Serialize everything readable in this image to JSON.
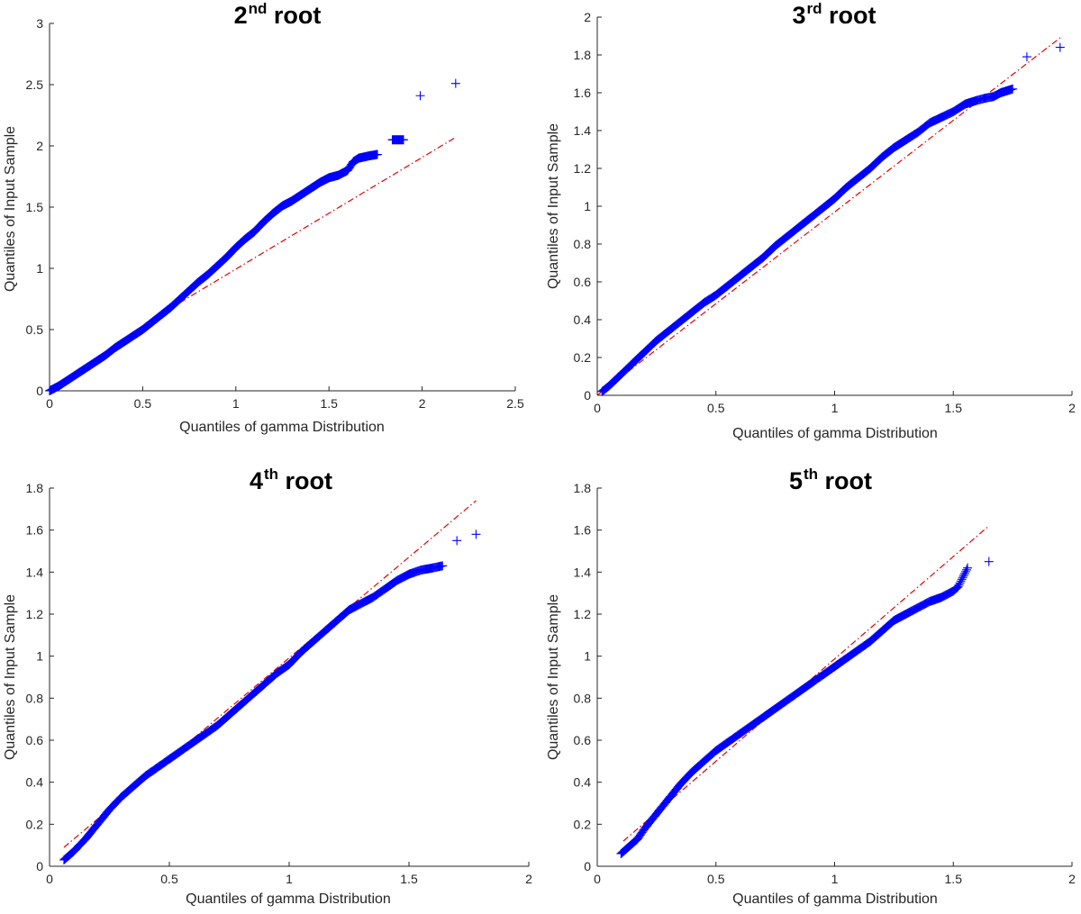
{
  "chart_data": [
    {
      "type": "scatter",
      "title_main": "2",
      "title_sup": "nd",
      "title_rest": " root",
      "xlabel": "Quantiles of gamma Distribution",
      "ylabel": "Quantiles of Input Sample",
      "xlim": [
        0,
        2.5
      ],
      "ylim": [
        0,
        3
      ],
      "xticks": [
        "0",
        "0.5",
        "1",
        "1.5",
        "2",
        "2.5"
      ],
      "yticks": [
        "0",
        "0.5",
        "1",
        "1.5",
        "2",
        "2.5",
        "3"
      ],
      "series": [
        {
          "marker": "+",
          "color": "#0000ff",
          "x": [
            0.0,
            0.05,
            0.1,
            0.15,
            0.2,
            0.25,
            0.3,
            0.35,
            0.4,
            0.45,
            0.5,
            0.55,
            0.6,
            0.65,
            0.7,
            0.75,
            0.8,
            0.85,
            0.9,
            0.95,
            1.0,
            1.05,
            1.1,
            1.15,
            1.2,
            1.25,
            1.3,
            1.35,
            1.4,
            1.45,
            1.5,
            1.55,
            1.6,
            1.63,
            1.66,
            1.69,
            1.72,
            1.76,
            1.84,
            1.9,
            1.99,
            2.18
          ],
          "y": [
            0.0,
            0.04,
            0.09,
            0.14,
            0.19,
            0.24,
            0.29,
            0.35,
            0.4,
            0.45,
            0.5,
            0.56,
            0.62,
            0.68,
            0.75,
            0.82,
            0.89,
            0.95,
            1.02,
            1.09,
            1.17,
            1.24,
            1.3,
            1.38,
            1.45,
            1.51,
            1.55,
            1.6,
            1.65,
            1.7,
            1.74,
            1.76,
            1.8,
            1.87,
            1.9,
            1.91,
            1.92,
            1.93,
            2.05,
            2.05,
            2.41,
            2.51
          ]
        },
        {
          "type": "line",
          "style": "dash-dot",
          "color": "#e60000",
          "x": [
            0.7,
            2.18
          ],
          "y": [
            0.72,
            2.07
          ]
        }
      ]
    },
    {
      "type": "scatter",
      "title_main": "3",
      "title_sup": "rd",
      "title_rest": " root",
      "xlabel": "Quantiles of gamma Distribution",
      "ylabel": "Quantiles of Input Sample",
      "xlim": [
        0,
        2
      ],
      "ylim": [
        0,
        2
      ],
      "xticks": [
        "0",
        "0.5",
        "1",
        "1.5",
        "2"
      ],
      "yticks": [
        "0",
        "0.2",
        "0.4",
        "0.6",
        "0.8",
        "1",
        "1.2",
        "1.4",
        "1.6",
        "1.8",
        "2"
      ],
      "series": [
        {
          "marker": "+",
          "color": "#0000ff",
          "x": [
            0.02,
            0.05,
            0.1,
            0.15,
            0.2,
            0.25,
            0.3,
            0.35,
            0.4,
            0.45,
            0.5,
            0.55,
            0.6,
            0.65,
            0.7,
            0.75,
            0.8,
            0.85,
            0.9,
            0.95,
            1.0,
            1.05,
            1.1,
            1.15,
            1.2,
            1.25,
            1.3,
            1.35,
            1.4,
            1.45,
            1.5,
            1.55,
            1.6,
            1.63,
            1.67,
            1.7,
            1.75,
            1.81,
            1.95
          ],
          "y": [
            0.02,
            0.05,
            0.11,
            0.17,
            0.23,
            0.29,
            0.34,
            0.39,
            0.44,
            0.49,
            0.53,
            0.58,
            0.63,
            0.68,
            0.73,
            0.79,
            0.84,
            0.89,
            0.94,
            0.99,
            1.04,
            1.1,
            1.15,
            1.2,
            1.26,
            1.31,
            1.35,
            1.39,
            1.44,
            1.47,
            1.5,
            1.54,
            1.56,
            1.57,
            1.58,
            1.6,
            1.62,
            1.79,
            1.84
          ]
        },
        {
          "type": "line",
          "style": "dash-dot",
          "color": "#e60000",
          "x": [
            0.0,
            1.96
          ],
          "y": [
            0.0,
            1.9
          ]
        }
      ]
    },
    {
      "type": "scatter",
      "title_main": "4",
      "title_sup": "th",
      "title_rest": " root",
      "xlabel": "Quantiles of gamma Distribution",
      "ylabel": "Quantiles of Input Sample",
      "xlim": [
        0,
        2
      ],
      "ylim": [
        0,
        1.8
      ],
      "xticks": [
        "0",
        "0.5",
        "1",
        "1.5",
        "2"
      ],
      "yticks": [
        "0",
        "0.2",
        "0.4",
        "0.6",
        "0.8",
        "1",
        "1.2",
        "1.4",
        "1.6",
        "1.8"
      ],
      "series": [
        {
          "marker": "+",
          "color": "#0000ff",
          "x": [
            0.06,
            0.1,
            0.15,
            0.2,
            0.25,
            0.3,
            0.35,
            0.4,
            0.45,
            0.5,
            0.55,
            0.6,
            0.65,
            0.7,
            0.75,
            0.8,
            0.85,
            0.9,
            0.95,
            1.0,
            1.05,
            1.1,
            1.15,
            1.2,
            1.25,
            1.3,
            1.35,
            1.4,
            1.45,
            1.5,
            1.55,
            1.6,
            1.64,
            1.7,
            1.78
          ],
          "y": [
            0.03,
            0.07,
            0.13,
            0.2,
            0.27,
            0.33,
            0.38,
            0.43,
            0.47,
            0.51,
            0.55,
            0.59,
            0.63,
            0.67,
            0.72,
            0.77,
            0.82,
            0.87,
            0.92,
            0.96,
            1.02,
            1.07,
            1.12,
            1.17,
            1.22,
            1.25,
            1.28,
            1.32,
            1.36,
            1.39,
            1.41,
            1.42,
            1.43,
            1.55,
            1.58
          ]
        },
        {
          "type": "line",
          "style": "dash-dot",
          "color": "#e60000",
          "x": [
            0.06,
            1.78
          ],
          "y": [
            0.09,
            1.74
          ]
        }
      ]
    },
    {
      "type": "scatter",
      "title_main": "5",
      "title_sup": "th",
      "title_rest": " root",
      "xlabel": "Quantiles of gamma Distribution",
      "ylabel": "Quantiles of Input Sample",
      "xlim": [
        0,
        2
      ],
      "ylim": [
        0,
        1.8
      ],
      "xticks": [
        "0",
        "0.5",
        "1",
        "1.5",
        "2"
      ],
      "yticks": [
        "0",
        "0.2",
        "0.4",
        "0.6",
        "0.8",
        "1",
        "1.2",
        "1.4",
        "1.6",
        "1.8"
      ],
      "series": [
        {
          "marker": "+",
          "color": "#0000ff",
          "x": [
            0.1,
            0.13,
            0.17,
            0.2,
            0.25,
            0.3,
            0.35,
            0.4,
            0.45,
            0.5,
            0.55,
            0.6,
            0.65,
            0.7,
            0.75,
            0.8,
            0.85,
            0.9,
            0.95,
            1.0,
            1.05,
            1.1,
            1.15,
            1.2,
            1.25,
            1.3,
            1.35,
            1.4,
            1.45,
            1.5,
            1.52,
            1.56,
            1.65
          ],
          "y": [
            0.06,
            0.09,
            0.13,
            0.18,
            0.25,
            0.32,
            0.39,
            0.45,
            0.5,
            0.55,
            0.59,
            0.63,
            0.67,
            0.71,
            0.75,
            0.79,
            0.83,
            0.87,
            0.91,
            0.95,
            0.99,
            1.03,
            1.07,
            1.12,
            1.17,
            1.2,
            1.23,
            1.26,
            1.28,
            1.31,
            1.33,
            1.42,
            1.45
          ]
        },
        {
          "type": "line",
          "style": "dash-dot",
          "color": "#e60000",
          "x": [
            0.11,
            1.65
          ],
          "y": [
            0.12,
            1.62
          ]
        }
      ]
    }
  ]
}
